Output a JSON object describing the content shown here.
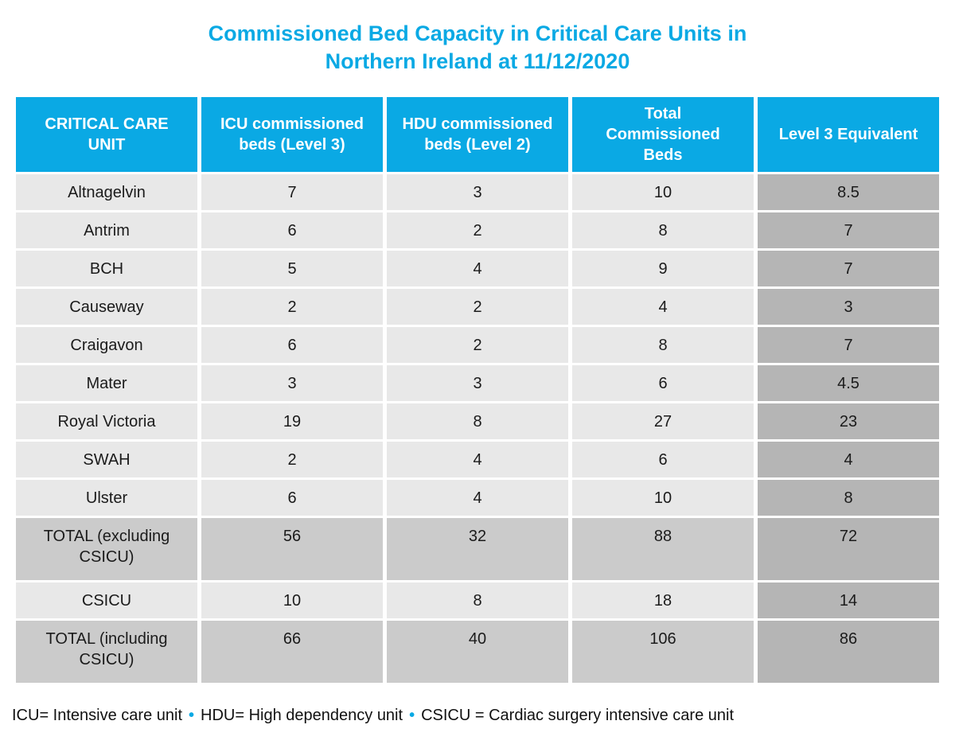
{
  "title": {
    "line1": "Commissioned Bed Capacity in Critical Care Units in",
    "line2": "Northern Ireland at 11/12/2020"
  },
  "colors": {
    "accent_cyan": "#0aa9e4",
    "header_text": "#ffffff",
    "body_cell_gray": "#e8e8e8",
    "total_row_gray": "#cbcbcb",
    "level3_column_gray": "#b5b5b5",
    "body_text": "#1b1b1b"
  },
  "table": {
    "headers": [
      "CRITICAL CARE UNIT",
      "ICU commissioned beds (Level 3)",
      "HDU commissioned beds (Level 2)",
      "Total Commissioned Beds",
      "Level 3 Equivalent"
    ],
    "rows": [
      {
        "unit": "Altnagelvin",
        "icu": "7",
        "hdu": "3",
        "total": "10",
        "level3": "8.5",
        "style": "normal"
      },
      {
        "unit": "Antrim",
        "icu": "6",
        "hdu": "2",
        "total": "8",
        "level3": "7",
        "style": "normal"
      },
      {
        "unit": "BCH",
        "icu": "5",
        "hdu": "4",
        "total": "9",
        "level3": "7",
        "style": "normal"
      },
      {
        "unit": "Causeway",
        "icu": "2",
        "hdu": "2",
        "total": "4",
        "level3": "3",
        "style": "normal"
      },
      {
        "unit": "Craigavon",
        "icu": "6",
        "hdu": "2",
        "total": "8",
        "level3": "7",
        "style": "normal"
      },
      {
        "unit": "Mater",
        "icu": "3",
        "hdu": "3",
        "total": "6",
        "level3": "4.5",
        "style": "normal"
      },
      {
        "unit": "Royal Victoria",
        "icu": "19",
        "hdu": "8",
        "total": "27",
        "level3": "23",
        "style": "normal"
      },
      {
        "unit": "SWAH",
        "icu": "2",
        "hdu": "4",
        "total": "6",
        "level3": "4",
        "style": "normal"
      },
      {
        "unit": "Ulster",
        "icu": "6",
        "hdu": "4",
        "total": "10",
        "level3": "8",
        "style": "normal"
      },
      {
        "unit": "TOTAL (excluding CSICU)",
        "icu": "56",
        "hdu": "32",
        "total": "88",
        "level3": "72",
        "style": "total"
      },
      {
        "unit": "CSICU",
        "icu": "10",
        "hdu": "8",
        "total": "18",
        "level3": "14",
        "style": "normal"
      },
      {
        "unit": "TOTAL (including CSICU)",
        "icu": "66",
        "hdu": "40",
        "total": "106",
        "level3": "86",
        "style": "total"
      }
    ]
  },
  "footnote": {
    "separator": "•",
    "items": [
      "ICU= Intensive care unit",
      "HDU= High dependency unit",
      "CSICU = Cardiac surgery intensive care unit"
    ]
  },
  "chart_data": {
    "type": "table",
    "title": "Commissioned Bed Capacity in Critical Care Units in Northern Ireland at 11/12/2020",
    "columns": [
      "CRITICAL CARE UNIT",
      "ICU commissioned beds (Level 3)",
      "HDU commissioned beds (Level 2)",
      "Total Commissioned Beds",
      "Level 3 Equivalent"
    ],
    "rows": [
      [
        "Altnagelvin",
        7,
        3,
        10,
        8.5
      ],
      [
        "Antrim",
        6,
        2,
        8,
        7
      ],
      [
        "BCH",
        5,
        4,
        9,
        7
      ],
      [
        "Causeway",
        2,
        2,
        4,
        3
      ],
      [
        "Craigavon",
        6,
        2,
        8,
        7
      ],
      [
        "Mater",
        3,
        3,
        6,
        4.5
      ],
      [
        "Royal Victoria",
        19,
        8,
        27,
        23
      ],
      [
        "SWAH",
        2,
        4,
        6,
        4
      ],
      [
        "Ulster",
        6,
        4,
        10,
        8
      ],
      [
        "TOTAL (excluding CSICU)",
        56,
        32,
        88,
        72
      ],
      [
        "CSICU",
        10,
        8,
        18,
        14
      ],
      [
        "TOTAL (including CSICU)",
        66,
        40,
        106,
        86
      ]
    ],
    "notes": "ICU= Intensive care unit; HDU= High dependency unit; CSICU = Cardiac surgery intensive care unit"
  }
}
